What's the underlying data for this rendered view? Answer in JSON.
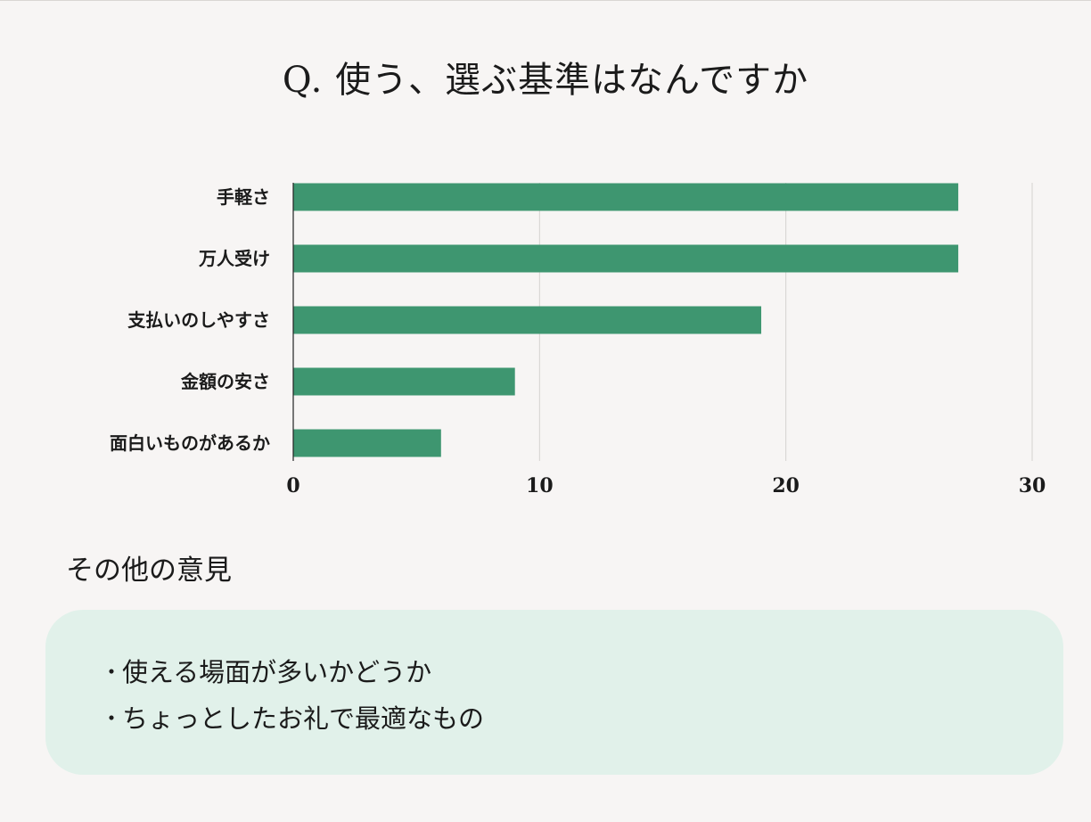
{
  "title": "Q. 使う、選ぶ基準はなんですか",
  "colors": {
    "bar": "#3e9670",
    "grid": "#d4d2d0",
    "axis": "#222222",
    "background": "#f7f5f4",
    "panel": "#e1f1ea"
  },
  "chart_data": {
    "type": "bar",
    "orientation": "horizontal",
    "categories": [
      "手軽さ",
      "万人受け",
      "支払いのしやすさ",
      "金額の安さ",
      "面白いものがあるか"
    ],
    "values": [
      27,
      27,
      19,
      9,
      6
    ],
    "xlim": [
      0,
      30
    ],
    "xticks": [
      0,
      10,
      20,
      30
    ],
    "xtick_labels": [
      "0",
      "10",
      "20",
      "30"
    ],
    "grid": true,
    "legend": "none"
  },
  "other": {
    "heading": "その他の意見",
    "bullet": "・",
    "items": [
      "使える場面が多いかどうか",
      "ちょっとしたお礼で最適なもの"
    ]
  }
}
